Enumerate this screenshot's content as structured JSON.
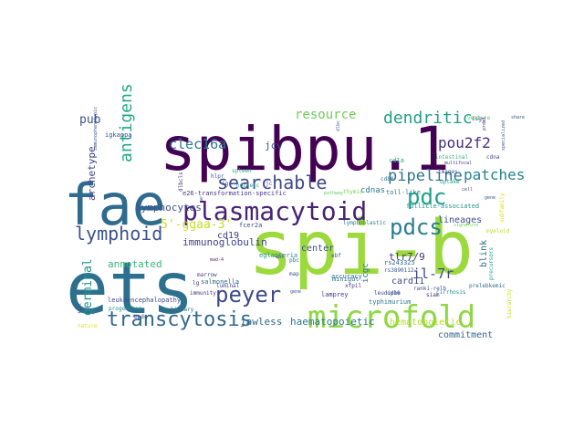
{
  "cloud": {
    "words": [
      {
        "text": "spibpu.1",
        "color": "#440154"
      },
      {
        "text": "spi-b",
        "color": "#9bd93c"
      },
      {
        "text": "ets",
        "color": "#2d708e"
      },
      {
        "text": "fae",
        "color": "#2f6b8e"
      },
      {
        "text": "microfold",
        "color": "#8fd744"
      },
      {
        "text": "plasmacytoid",
        "color": "#482374"
      },
      {
        "text": "pdc",
        "color": "#1fa187"
      },
      {
        "text": "pdcs",
        "color": "#277f8e"
      },
      {
        "text": "lymphoid",
        "color": "#3b528b"
      },
      {
        "text": "searchable",
        "color": "#3e4989"
      },
      {
        "text": "peyer",
        "color": "#3e4a89"
      },
      {
        "text": "transcytosis",
        "color": "#31688e"
      },
      {
        "text": "dendritic",
        "color": "#1f9e89"
      },
      {
        "text": "patches",
        "color": "#25838e"
      },
      {
        "text": "pipeline",
        "color": "#2c728e"
      },
      {
        "text": "pou2f2",
        "color": "#46307e"
      },
      {
        "text": "clec16a",
        "color": "#2a788e"
      },
      {
        "text": "resource",
        "color": "#6ece58"
      },
      {
        "text": "antigens",
        "color": "#22a884"
      },
      {
        "text": "pub",
        "color": "#3b528b"
      },
      {
        "text": "5'-ggaa-3'",
        "color": "#c2df23"
      },
      {
        "text": "il-7r",
        "color": "#3f4788"
      },
      {
        "text": "germinal",
        "color": "#21918c"
      },
      {
        "text": "immunoglobulin",
        "color": "#433e85"
      },
      {
        "text": "lymphocytes",
        "color": "#3b528b"
      },
      {
        "text": "archetype",
        "color": "#414487"
      },
      {
        "text": "annotated",
        "color": "#35b779"
      },
      {
        "text": "jawless",
        "color": "#31688e"
      },
      {
        "text": "haematopoietic",
        "color": "#2a788e"
      },
      {
        "text": "hematopoietic",
        "color": "#b5de2b"
      },
      {
        "text": "commitment",
        "color": "#31688e"
      },
      {
        "text": "tlr7/9",
        "color": "#46337e"
      },
      {
        "text": "lineages",
        "color": "#3b528b"
      },
      {
        "text": "card11",
        "color": "#3e4a89"
      },
      {
        "text": "cdnas",
        "color": "#2a788e"
      },
      {
        "text": "center",
        "color": "#3b528b"
      },
      {
        "text": "cd19",
        "color": "#424086"
      },
      {
        "text": "jcv",
        "color": "#3b528b"
      },
      {
        "text": "blink",
        "color": "#2c728e"
      },
      {
        "text": "e26-transformation-specific",
        "color": "#443983"
      },
      {
        "text": "toll-like",
        "color": "#2a788e"
      },
      {
        "text": "thymic",
        "color": "#7ad151"
      },
      {
        "text": "follicle-associated",
        "color": "#21918c"
      },
      {
        "text": "spleen",
        "color": "#27ad81"
      },
      {
        "text": "nucleic",
        "color": "#20a386"
      },
      {
        "text": "igkappa",
        "color": "#3b528b"
      },
      {
        "text": "fcer2a",
        "color": "#3e4a89"
      },
      {
        "text": "dlbcls",
        "color": "#46327e"
      },
      {
        "text": "accuracy",
        "color": "#2c728e"
      },
      {
        "text": "intestinal",
        "color": "#35b779"
      },
      {
        "text": "images",
        "color": "#3b528b"
      },
      {
        "text": "uptake",
        "color": "#20a386"
      },
      {
        "text": "cdna",
        "color": "#3e4989"
      },
      {
        "text": "venture",
        "color": "#5ec962"
      },
      {
        "text": "multifocal",
        "color": "#443a83"
      },
      {
        "text": "cd1a",
        "color": "#22a884"
      },
      {
        "text": "cd80",
        "color": "#2c728e"
      },
      {
        "text": "myeloid",
        "color": "#bddf26"
      },
      {
        "text": "prdm1",
        "color": "#482878"
      },
      {
        "text": "rs243325",
        "color": "#31688e"
      },
      {
        "text": "rs3890112",
        "color": "#38588c"
      },
      {
        "text": "eglanteria",
        "color": "#21918c"
      },
      {
        "text": "minigut",
        "color": "#2c728e"
      },
      {
        "text": "xfpil",
        "color": "#46327e"
      },
      {
        "text": "ranki-relb",
        "color": "#3b528b"
      },
      {
        "text": "siam",
        "color": "#482576"
      },
      {
        "text": "lamprey",
        "color": "#443983"
      },
      {
        "text": "typhimurium",
        "color": "#2a788e"
      },
      {
        "text": "leukoencephalopathy",
        "color": "#3e4a89"
      },
      {
        "text": "progenitor",
        "color": "#21918c"
      },
      {
        "text": "biliary",
        "color": "#2d708e"
      },
      {
        "text": "bpdc",
        "color": "#3e4989"
      },
      {
        "text": "marrow",
        "color": "#424086"
      },
      {
        "text": "lymphoblastic",
        "color": "#2a788e"
      },
      {
        "text": "salmonella",
        "color": "#31688e"
      },
      {
        "text": "lg",
        "color": "#46337e"
      },
      {
        "text": "immunity",
        "color": "#443983"
      },
      {
        "text": "luminal",
        "color": "#3e4989"
      },
      {
        "text": "pbc",
        "color": "#2c728e"
      },
      {
        "text": "map",
        "color": "#3b528b"
      },
      {
        "text": "ebf",
        "color": "#38588c"
      },
      {
        "text": "cirrhosis",
        "color": "#21918c"
      },
      {
        "text": "prelebkemic",
        "color": "#2d708e"
      },
      {
        "text": "precursors",
        "color": "#20a386"
      },
      {
        "text": "mad-4",
        "color": "#46327e"
      },
      {
        "text": "leudiphe",
        "color": "#3e4a89"
      },
      {
        "text": "subfamily",
        "color": "#d8e219"
      },
      {
        "text": "hierarchy",
        "color": "#c8e020"
      },
      {
        "text": "nature",
        "color": "#e5e419"
      },
      {
        "text": "cd16",
        "color": "#3b528b"
      },
      {
        "text": "hlpr",
        "color": "#3b528b"
      },
      {
        "text": "tool",
        "color": "#3b528b"
      },
      {
        "text": "jc",
        "color": "#3b528b"
      },
      {
        "text": "ig",
        "color": "#3b528b"
      },
      {
        "text": "k",
        "color": "#3b528b"
      },
      {
        "text": "icgc",
        "color": "#2c728e"
      },
      {
        "text": "isg",
        "color": "#3b528b"
      },
      {
        "text": "share",
        "color": "#3b528b"
      },
      {
        "text": "pathway",
        "color": "#5ec962"
      },
      {
        "text": "signature",
        "color": "#7ad151"
      },
      {
        "text": "gene",
        "color": "#3b528b"
      },
      {
        "text": "cell",
        "color": "#3b528b"
      },
      {
        "text": "specialized",
        "color": "#3b528b"
      },
      {
        "text": "immunophenotypic",
        "color": "#3b528b"
      },
      {
        "text": "dlbc",
        "color": "#3b528b"
      },
      {
        "text": "ebl",
        "color": "#3b528b"
      },
      {
        "text": "gene",
        "color": "#3b528b"
      }
    ]
  }
}
